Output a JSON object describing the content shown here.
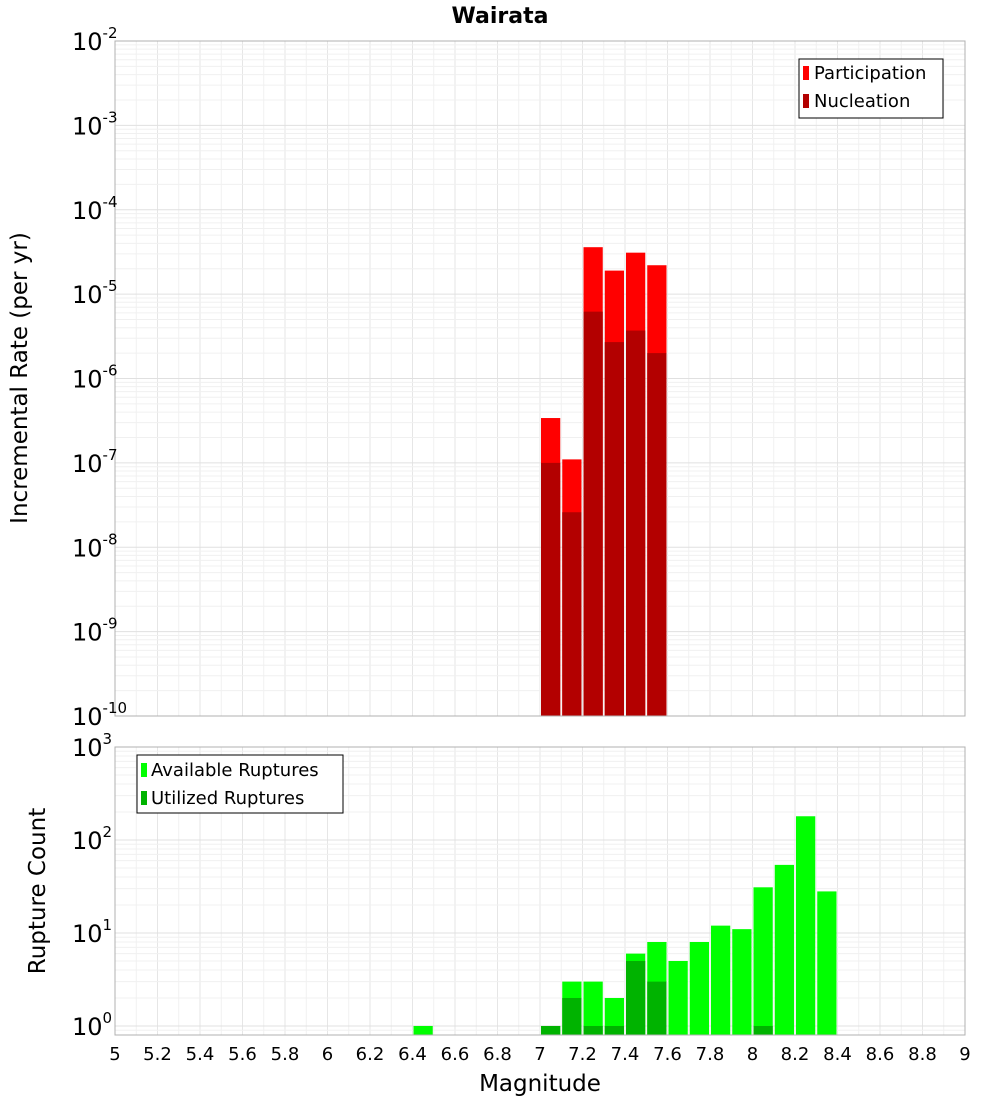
{
  "chart_data": [
    {
      "type": "bar",
      "title": "Wairata",
      "ylabel": "Incremental Rate (per yr)",
      "xlabel": "",
      "yscale": "log",
      "ylim": [
        1e-10,
        0.01
      ],
      "xlim": [
        5,
        9
      ],
      "grid": true,
      "legend_position": "top-right",
      "y_ticks": [
        {
          "base": "10",
          "exp": "-2"
        },
        {
          "base": "10",
          "exp": "-3"
        },
        {
          "base": "10",
          "exp": "-4"
        },
        {
          "base": "10",
          "exp": "-5"
        },
        {
          "base": "10",
          "exp": "-6"
        },
        {
          "base": "10",
          "exp": "-7"
        },
        {
          "base": "10",
          "exp": "-8"
        },
        {
          "base": "10",
          "exp": "-9"
        },
        {
          "base": "10",
          "exp": "-10"
        }
      ],
      "series": [
        {
          "name": "Participation",
          "color": "#ff0000",
          "x": [
            7.05,
            7.15,
            7.25,
            7.35,
            7.45,
            7.55
          ],
          "values": [
            3.4e-07,
            1.1e-07,
            3.6e-05,
            1.9e-05,
            3.1e-05,
            2.2e-05
          ]
        },
        {
          "name": "Nucleation",
          "color": "#b30000",
          "x": [
            7.05,
            7.15,
            7.25,
            7.35,
            7.45,
            7.55
          ],
          "values": [
            1e-07,
            2.6e-08,
            6.2e-06,
            2.7e-06,
            3.7e-06,
            2e-06
          ]
        }
      ]
    },
    {
      "type": "bar",
      "title": "",
      "ylabel": "Rupture Count",
      "xlabel": "Magnitude",
      "yscale": "log",
      "ylim": [
        0.8,
        1000
      ],
      "xlim": [
        5,
        9
      ],
      "grid": true,
      "legend_position": "top-left",
      "x_ticks": [
        "5",
        "5.2",
        "5.4",
        "5.6",
        "5.8",
        "6",
        "6.2",
        "6.4",
        "6.6",
        "6.8",
        "7",
        "7.2",
        "7.4",
        "7.6",
        "7.8",
        "8",
        "8.2",
        "8.4",
        "8.6",
        "8.8",
        "9"
      ],
      "y_ticks": [
        {
          "base": "10",
          "exp": "3"
        },
        {
          "base": "10",
          "exp": "2"
        },
        {
          "base": "10",
          "exp": "1"
        },
        {
          "base": "10",
          "exp": "0"
        }
      ],
      "series": [
        {
          "name": "Available Ruptures",
          "color": "#00ff00",
          "x": [
            6.45,
            7.05,
            7.15,
            7.25,
            7.35,
            7.45,
            7.55,
            7.65,
            7.75,
            7.85,
            7.95,
            8.05,
            8.15,
            8.25,
            8.35
          ],
          "values": [
            1,
            1,
            3,
            3,
            2,
            6,
            8,
            5,
            8,
            12,
            11,
            31,
            54,
            180,
            28
          ]
        },
        {
          "name": "Utilized Ruptures",
          "color": "#00b300",
          "x": [
            7.05,
            7.15,
            7.25,
            7.35,
            7.45,
            7.55,
            8.05
          ],
          "values": [
            1,
            2,
            1,
            1,
            5,
            3,
            1
          ]
        }
      ]
    }
  ]
}
